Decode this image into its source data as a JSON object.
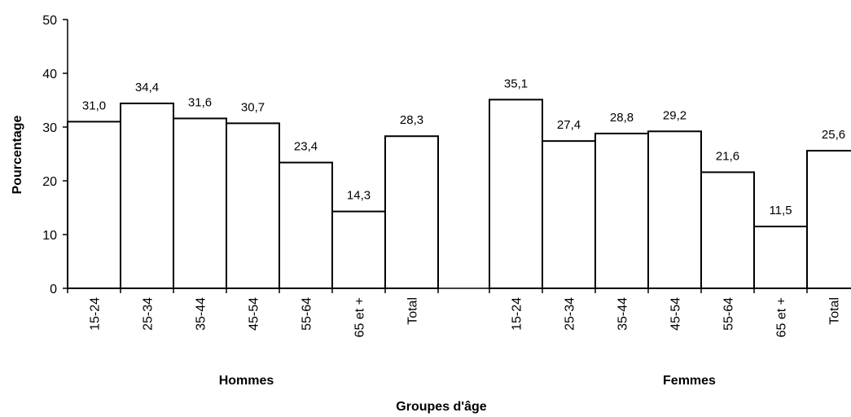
{
  "chart_data": {
    "type": "bar",
    "title": "",
    "xlabel": "Groupes d'âge",
    "ylabel": "Pourcentage",
    "ylim": [
      0,
      50
    ],
    "yticks": [
      "0",
      "10",
      "20",
      "30",
      "40",
      "50"
    ],
    "grid": false,
    "legend": "none",
    "bar_fill": "#ffffff",
    "bar_stroke": "#000000",
    "groups": [
      {
        "name": "Hommes",
        "categories": [
          "15-24",
          "25-34",
          "35-44",
          "45-54",
          "55-64",
          "65 et +",
          "Total"
        ],
        "values": [
          31.0,
          34.4,
          31.6,
          30.7,
          23.4,
          14.3,
          28.3
        ],
        "value_labels": [
          "31,0",
          "34,4",
          "31,6",
          "30,7",
          "23,4",
          "14,3",
          "28,3"
        ]
      },
      {
        "name": "Femmes",
        "categories": [
          "15-24",
          "25-34",
          "35-44",
          "45-54",
          "55-64",
          "65 et +",
          "Total"
        ],
        "values": [
          35.1,
          27.4,
          28.8,
          29.2,
          21.6,
          11.5,
          25.6
        ],
        "value_labels": [
          "35,1",
          "27,4",
          "28,8",
          "29,2",
          "21,6",
          "11,5",
          "25,6"
        ]
      }
    ]
  }
}
